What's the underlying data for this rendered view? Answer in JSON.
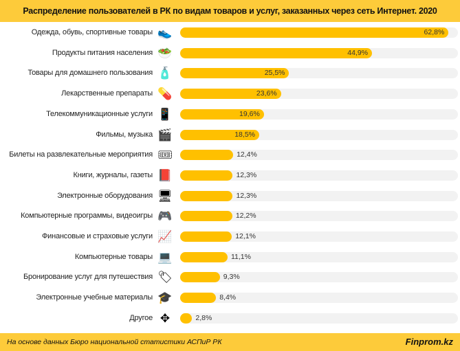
{
  "chart_data": {
    "type": "bar",
    "orientation": "horizontal",
    "title": "Распределение пользователей в РК по видам товаров и услуг, заказанных через сеть Интернет. 2020",
    "categories": [
      "Одежда, обувь, спортивные товары",
      "Продукты питания населения",
      "Товары для домашнего пользования",
      "Лекарственные препараты",
      "Телекоммуникационные услуги",
      "Фильмы, музыка",
      "Билеты на развлекательные мероприятия",
      "Книги, журналы, газеты",
      "Электронные оборудования",
      "Компьютерные программы, видеоигры",
      "Финансовые и страховые услуги",
      "Компьютерные товары",
      "Бронирование услуг для путешествия",
      "Электронные учебные материалы",
      "Другое"
    ],
    "values": [
      62.8,
      44.9,
      25.5,
      23.6,
      19.6,
      18.5,
      12.4,
      12.3,
      12.3,
      12.2,
      12.1,
      11.1,
      9.3,
      8.4,
      2.8
    ],
    "value_labels": [
      "62,8%",
      "44,9%",
      "25,5%",
      "23,6%",
      "19,6%",
      "18,5%",
      "12,4%",
      "12,3%",
      "12,3%",
      "12,2%",
      "12,1%",
      "11,1%",
      "9,3%",
      "8,4%",
      "2,8%"
    ],
    "icons": [
      "sneaker-icon",
      "food-icon",
      "household-icon",
      "pills-icon",
      "phone-icon",
      "film-icon",
      "ticket-icon",
      "book-icon",
      "electronics-icon",
      "gamepad-icon",
      "finance-icon",
      "computer-icon",
      "reserved-icon",
      "graduation-cap-icon",
      "arrows-icon"
    ],
    "xlim": [
      0,
      65
    ],
    "unit": "%",
    "colors": {
      "bar": "#FFC000",
      "track": "#F2F2F2",
      "header": "#FDCB3A"
    }
  },
  "footer": {
    "source": "На основе данных  Бюро национальной  статистики АСПиР РК",
    "brand": "Finprom.kz"
  }
}
